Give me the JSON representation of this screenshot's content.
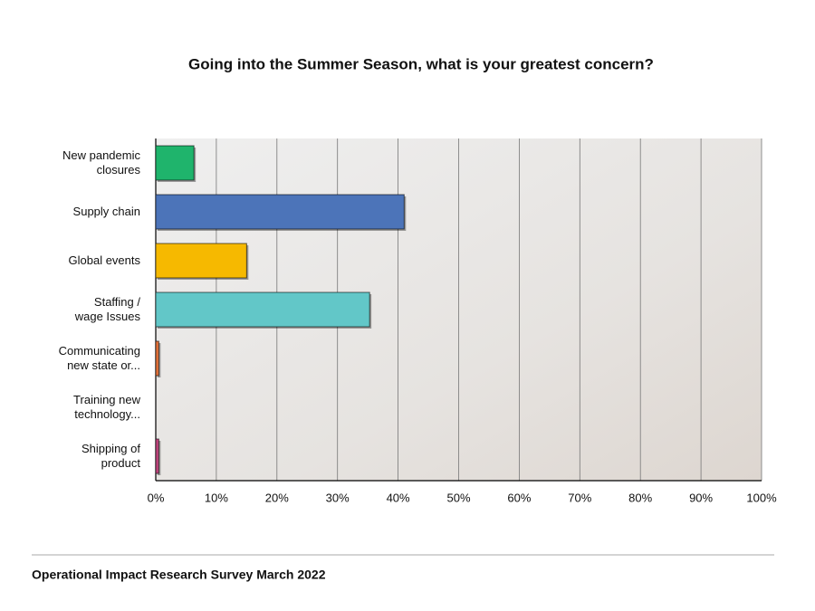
{
  "chart_data": {
    "type": "hbar",
    "title": "Going into the Summer Season, what is your greatest concern?",
    "categories": [
      "New pandemic\nclosures",
      "Supply chain",
      "Global events",
      "Staffing /\nwage Issues",
      "Communicating\nnew state or...",
      "Training new\ntechnology...",
      "Shipping of\nproduct"
    ],
    "values": [
      6.3,
      41,
      15,
      35.3,
      0.5,
      0,
      0.5
    ],
    "colors": [
      "#1fb46c",
      "#4c74b9",
      "#f6b900",
      "#62c7c8",
      "#e8743b",
      "#9a9a9a",
      "#c2467f"
    ],
    "xlim": [
      0,
      100
    ],
    "xticks": [
      {
        "value": 0,
        "label": "0%"
      },
      {
        "value": 10,
        "label": "10%"
      },
      {
        "value": 20,
        "label": "20%"
      },
      {
        "value": 30,
        "label": "30%"
      },
      {
        "value": 40,
        "label": "40%"
      },
      {
        "value": 50,
        "label": "50%"
      },
      {
        "value": 60,
        "label": "60%"
      },
      {
        "value": 70,
        "label": "70%"
      },
      {
        "value": 80,
        "label": "80%"
      },
      {
        "value": 90,
        "label": "90%"
      },
      {
        "value": 100,
        "label": "100%"
      }
    ],
    "grid": true
  },
  "footer": "Operational Impact Research Survey March 2022"
}
